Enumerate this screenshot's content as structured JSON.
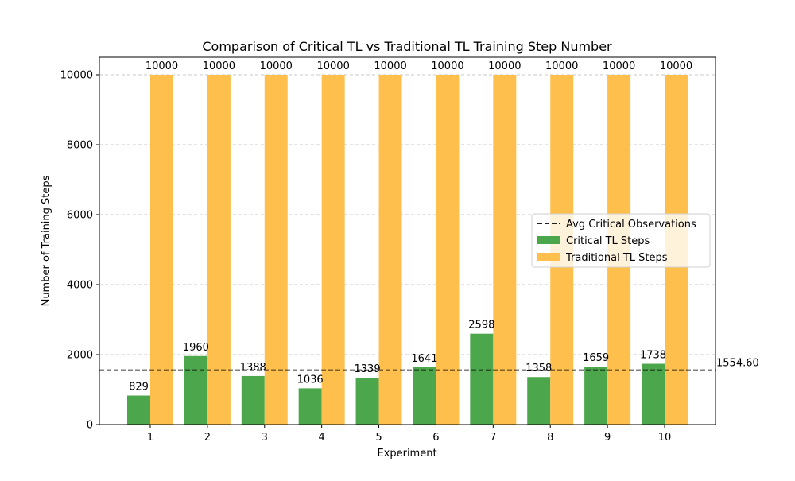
{
  "chart_data": {
    "type": "bar",
    "title": "Comparison of Critical TL vs Traditional TL Training Step Number",
    "xlabel": "Experiment",
    "ylabel": "Number of Training Steps",
    "categories": [
      "1",
      "2",
      "3",
      "4",
      "5",
      "6",
      "7",
      "8",
      "9",
      "10"
    ],
    "series": [
      {
        "name": "Critical TL Steps",
        "color": "#4ca64c",
        "values": [
          829,
          1960,
          1388,
          1036,
          1339,
          1641,
          2598,
          1358,
          1659,
          1738
        ],
        "labels": [
          "829",
          "1960",
          "1388",
          "1036",
          "1339",
          "1641",
          "2598",
          "1358",
          "1659",
          "1738"
        ]
      },
      {
        "name": "Traditional TL Steps",
        "color": "#ffbf4c",
        "values": [
          10000,
          10000,
          10000,
          10000,
          10000,
          10000,
          10000,
          10000,
          10000,
          10000
        ],
        "labels": [
          "10000",
          "10000",
          "10000",
          "10000",
          "10000",
          "10000",
          "10000",
          "10000",
          "10000",
          "10000"
        ]
      }
    ],
    "reference_line": {
      "name": "Avg Critical Observations",
      "value": 1554.6,
      "label": "1554.60",
      "style": "dashed",
      "color": "#000000"
    },
    "ylim": [
      0,
      10500
    ],
    "yticks": [
      0,
      2000,
      4000,
      6000,
      8000,
      10000
    ],
    "ytick_labels": [
      "0",
      "2000",
      "4000",
      "6000",
      "8000",
      "10000"
    ],
    "grid": "y-dashed",
    "legend_position": "center-right"
  }
}
